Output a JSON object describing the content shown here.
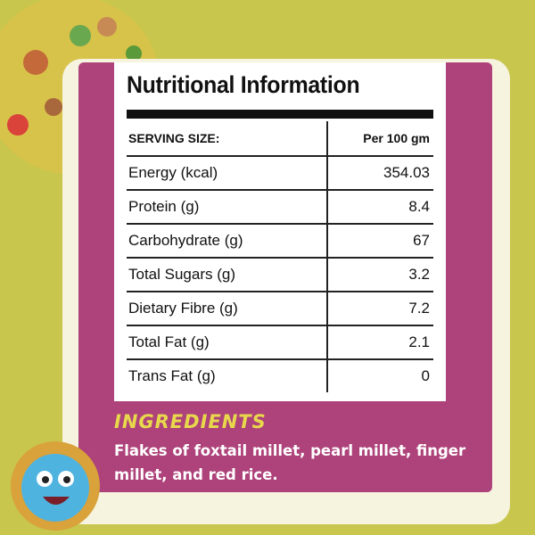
{
  "header": {
    "title": "Nutritional Information"
  },
  "table": {
    "columns": [
      "SERVING SIZE:",
      "Per 100 gm"
    ],
    "rows": [
      [
        "Energy (kcal)",
        "354.03"
      ],
      [
        "Protein (g)",
        "8.4"
      ],
      [
        "Carbohydrate (g)",
        "67"
      ],
      [
        "Total Sugars (g)",
        "3.2"
      ],
      [
        "Dietary Fibre (g)",
        "7.2"
      ],
      [
        "Total Fat (g)",
        "2.1"
      ],
      [
        "Trans Fat (g)",
        "0"
      ]
    ]
  },
  "ingredients": {
    "title": "INGREDIENTS",
    "text": "Flakes of foxtail millet, pearl millet, finger millet, and red rice."
  }
}
